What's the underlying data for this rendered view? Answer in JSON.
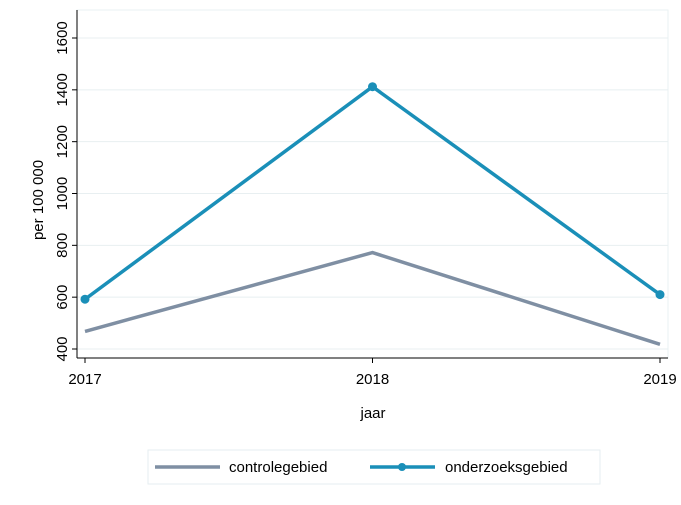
{
  "chart_data": {
    "type": "line",
    "x": [
      2017,
      2018,
      2019
    ],
    "series": [
      {
        "name": "controlegebied",
        "values": [
          468,
          772,
          418
        ],
        "color": "#7f8fa3",
        "markers": false
      },
      {
        "name": "onderzoeksgebied",
        "values": [
          592,
          1412,
          610
        ],
        "color": "#1a8fb8",
        "markers": true
      }
    ],
    "xlabel": "jaar",
    "ylabel": "per 100 000",
    "xticks": [
      "2017",
      "2018",
      "2019"
    ],
    "yticks": [
      "400",
      "600",
      "800",
      "1000",
      "1200",
      "1400",
      "1600"
    ],
    "ylim": [
      400,
      1600
    ],
    "xlim": [
      2017,
      2019
    ],
    "grid": "horizontal",
    "legend_position": "bottom"
  }
}
